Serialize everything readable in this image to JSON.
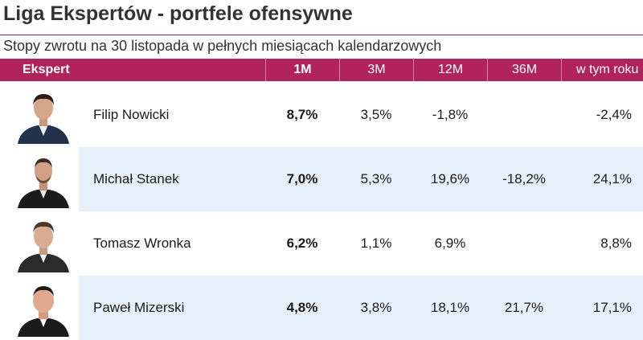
{
  "title": "Liga Ekspertów - portfele ofensywne",
  "subtitle": "Stopy zwrotu na 30 listopada w pełnych miesiącach kalendarzowych",
  "columns": {
    "expert": "Ekspert",
    "m1": "1M",
    "m3": "3M",
    "m12": "12M",
    "m36": "36M",
    "ytd": "w tym roku"
  },
  "experts": [
    {
      "name": "Filip Nowicki",
      "m1": "8,7%",
      "m3": "3,5%",
      "m12": "-1,8%",
      "m36": "",
      "ytd": "-2,4%"
    },
    {
      "name": "Michał Stanek",
      "m1": "7,0%",
      "m3": "5,3%",
      "m12": "19,6%",
      "m36": "-18,2%",
      "ytd": "24,1%"
    },
    {
      "name": "Tomasz Wronka",
      "m1": "6,2%",
      "m3": "1,1%",
      "m12": "6,9%",
      "m36": "",
      "ytd": "8,8%"
    },
    {
      "name": "Paweł Mizerski",
      "m1": "4,8%",
      "m3": "3,8%",
      "m12": "18,1%",
      "m36": "21,7%",
      "ytd": "17,1%"
    }
  ],
  "colors": {
    "header": "#b0245a",
    "row_alt": "#e6f0fa"
  }
}
